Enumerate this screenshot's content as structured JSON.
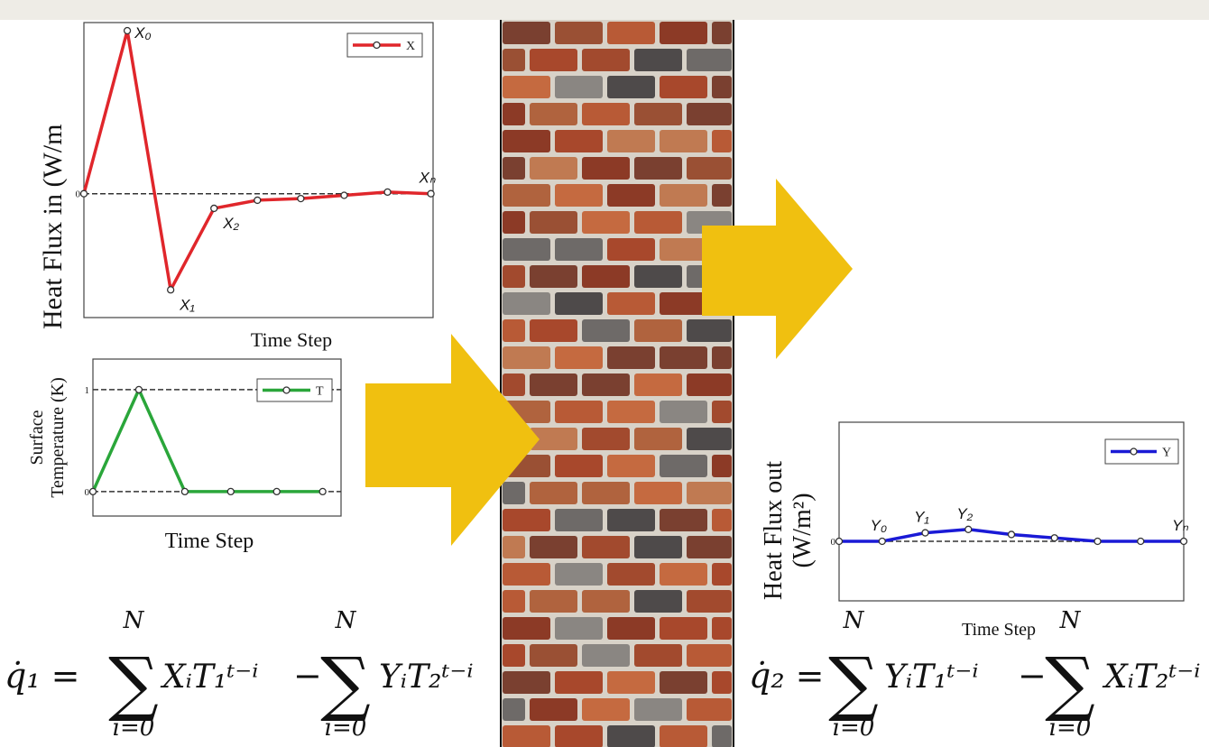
{
  "chart_data": [
    {
      "type": "line",
      "ylabel": "Heat Flux in (W/m",
      "xlabel": "Time Step",
      "x": [
        0,
        1,
        2,
        3,
        4,
        5,
        6,
        7,
        8
      ],
      "series": [
        {
          "name": "X",
          "color": "#e0262b",
          "values": [
            0,
            1,
            -0.59,
            -0.09,
            -0.04,
            -0.03,
            -0.01,
            0.01,
            0
          ]
        }
      ],
      "point_labels": [
        null,
        "X₀",
        "X₁",
        "X₂",
        null,
        null,
        null,
        null,
        "Xₙ"
      ],
      "xlim": [
        0,
        8.05
      ],
      "ylim": [
        -0.76,
        1.05
      ],
      "yticks": [
        0
      ],
      "legend": "upper right"
    },
    {
      "type": "line",
      "ylabel": [
        "Surface",
        "Temperature (K)"
      ],
      "xlabel": "Time Step",
      "x": [
        0,
        1,
        2,
        3,
        4,
        5
      ],
      "series": [
        {
          "name": "T",
          "color": "#2aa63a",
          "values": [
            0,
            1,
            0,
            0,
            0,
            0
          ]
        }
      ],
      "xlim": [
        0,
        5.4
      ],
      "ylim": [
        -0.24,
        1.3
      ],
      "yticks": [
        0,
        1
      ],
      "legend": "upper right"
    },
    {
      "type": "line",
      "ylabel": [
        "Heat Flux out",
        "(W/m²)"
      ],
      "xlabel": "Time Step",
      "x": [
        0,
        1,
        2,
        3,
        4,
        5,
        6,
        7,
        8
      ],
      "series": [
        {
          "name": "Y",
          "color": "#1a1ad6",
          "values": [
            0,
            0,
            0.05,
            0.07,
            0.04,
            0.02,
            0,
            0,
            0
          ]
        }
      ],
      "point_labels": [
        null,
        "Y₀",
        "Y₁",
        "Y₂",
        null,
        null,
        null,
        null,
        "Yₙ"
      ],
      "xlim": [
        0,
        8
      ],
      "ylim": [
        -0.35,
        0.7
      ],
      "yticks": [
        0
      ],
      "legend": "upper right"
    }
  ],
  "equations": [
    {
      "lhs": "q̇₁ =",
      "sum1": {
        "symbol": "∑",
        "upper": "N",
        "lower": "i=0"
      },
      "term1": "XᵢT₁ᵗ⁻ⁱ",
      "minus": "−",
      "sum2": {
        "symbol": "∑",
        "upper": "N",
        "lower": "i=0"
      },
      "term2": "YᵢT₂ᵗ⁻ⁱ"
    },
    {
      "lhs": "q̇₂ =",
      "sum1": {
        "symbol": "∑",
        "upper": "N",
        "lower": "i=0"
      },
      "term1": "YᵢT₁ᵗ⁻ⁱ",
      "minus": "−",
      "sum2": {
        "symbol": "∑",
        "upper": "N",
        "lower": "i=0"
      },
      "term2": "XᵢT₂ᵗ⁻ⁱ"
    }
  ]
}
